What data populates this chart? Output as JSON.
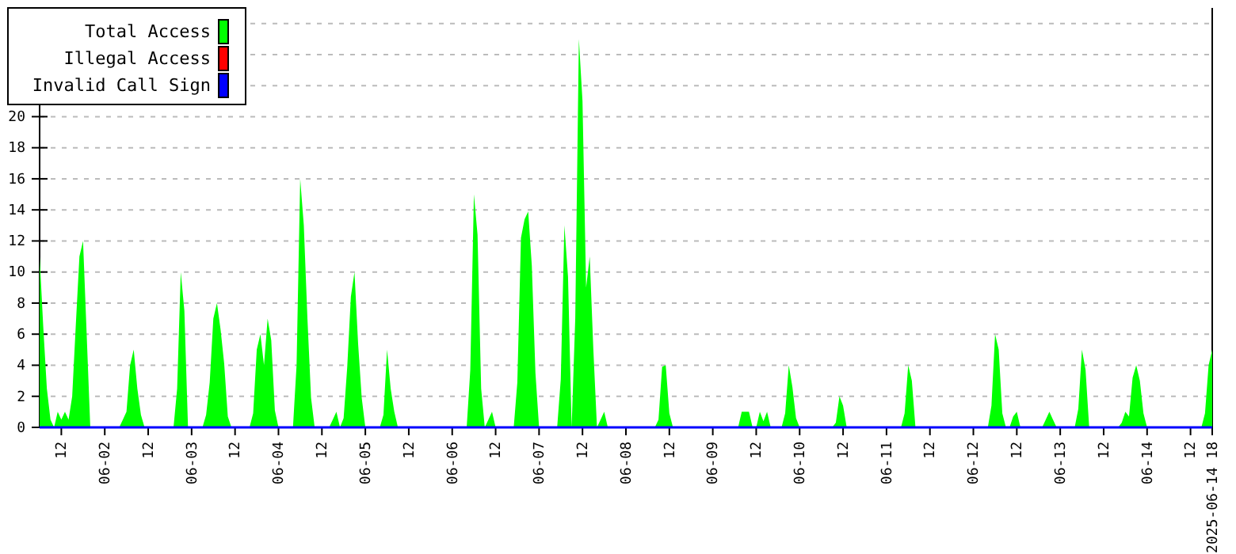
{
  "chart_data": {
    "type": "area",
    "xlim": [
      "2025-06-01T06:00",
      "2025-06-14T18:00"
    ],
    "xticks": [
      {
        "value": "2025-06-01T12:00",
        "label": "12"
      },
      {
        "value": "2025-06-02T00:00",
        "label": "06-02"
      },
      {
        "value": "2025-06-02T12:00",
        "label": "12"
      },
      {
        "value": "2025-06-03T00:00",
        "label": "06-03"
      },
      {
        "value": "2025-06-03T12:00",
        "label": "12"
      },
      {
        "value": "2025-06-04T00:00",
        "label": "06-04"
      },
      {
        "value": "2025-06-04T12:00",
        "label": "12"
      },
      {
        "value": "2025-06-05T00:00",
        "label": "06-05"
      },
      {
        "value": "2025-06-05T12:00",
        "label": "12"
      },
      {
        "value": "2025-06-06T00:00",
        "label": "06-06"
      },
      {
        "value": "2025-06-06T12:00",
        "label": "12"
      },
      {
        "value": "2025-06-07T00:00",
        "label": "06-07"
      },
      {
        "value": "2025-06-07T12:00",
        "label": "12"
      },
      {
        "value": "2025-06-08T00:00",
        "label": "06-08"
      },
      {
        "value": "2025-06-08T12:00",
        "label": "12"
      },
      {
        "value": "2025-06-09T00:00",
        "label": "06-09"
      },
      {
        "value": "2025-06-09T12:00",
        "label": "12"
      },
      {
        "value": "2025-06-10T00:00",
        "label": "06-10"
      },
      {
        "value": "2025-06-10T12:00",
        "label": "12"
      },
      {
        "value": "2025-06-11T00:00",
        "label": "06-11"
      },
      {
        "value": "2025-06-11T12:00",
        "label": "12"
      },
      {
        "value": "2025-06-12T00:00",
        "label": "06-12"
      },
      {
        "value": "2025-06-12T12:00",
        "label": "12"
      },
      {
        "value": "2025-06-13T00:00",
        "label": "06-13"
      },
      {
        "value": "2025-06-13T12:00",
        "label": "12"
      },
      {
        "value": "2025-06-14T00:00",
        "label": "06-14"
      },
      {
        "value": "2025-06-14T12:00",
        "label": "12"
      },
      {
        "value": "2025-06-14T18:00",
        "label": "2025-06-14 18"
      }
    ],
    "ylim": [
      0,
      27
    ],
    "yticks": [
      0,
      2,
      4,
      6,
      8,
      10,
      12,
      14,
      16,
      18,
      20,
      {
        "value": 22,
        "label": null
      },
      {
        "value": 24,
        "label": null
      },
      {
        "value": 26,
        "label": null
      }
    ],
    "grid": "y",
    "legend": "top left",
    "series": [
      {
        "name": "Total Access",
        "color": "#00ff00",
        "x": [
          "2025-06-01T06:00",
          "2025-06-01T07:00",
          "2025-06-01T08:00",
          "2025-06-01T09:00",
          "2025-06-01T10:00",
          "2025-06-01T11:00",
          "2025-06-01T12:00",
          "2025-06-01T13:00",
          "2025-06-01T14:00",
          "2025-06-01T15:00",
          "2025-06-01T16:00",
          "2025-06-01T17:00",
          "2025-06-01T18:00",
          "2025-06-01T19:00",
          "2025-06-01T20:00",
          "2025-06-02T04:00",
          "2025-06-02T05:00",
          "2025-06-02T06:00",
          "2025-06-02T07:00",
          "2025-06-02T08:00",
          "2025-06-02T09:00",
          "2025-06-02T10:00",
          "2025-06-02T11:00",
          "2025-06-02T19:00",
          "2025-06-02T20:00",
          "2025-06-02T21:00",
          "2025-06-02T22:00",
          "2025-06-02T23:00",
          "2025-06-03T03:00",
          "2025-06-03T04:00",
          "2025-06-03T05:00",
          "2025-06-03T06:00",
          "2025-06-03T07:00",
          "2025-06-03T08:00",
          "2025-06-03T09:00",
          "2025-06-03T10:00",
          "2025-06-03T11:00",
          "2025-06-03T16:00",
          "2025-06-03T17:00",
          "2025-06-03T18:00",
          "2025-06-03T19:00",
          "2025-06-03T20:00",
          "2025-06-03T21:00",
          "2025-06-03T22:00",
          "2025-06-03T23:00",
          "2025-06-04T00:00",
          "2025-06-04T04:00",
          "2025-06-04T05:00",
          "2025-06-04T06:00",
          "2025-06-04T07:00",
          "2025-06-04T08:00",
          "2025-06-04T09:00",
          "2025-06-04T10:00",
          "2025-06-04T14:00",
          "2025-06-04T15:00",
          "2025-06-04T16:00",
          "2025-06-04T17:00",
          "2025-06-04T18:00",
          "2025-06-04T19:00",
          "2025-06-04T20:00",
          "2025-06-04T21:00",
          "2025-06-04T22:00",
          "2025-06-04T23:00",
          "2025-06-05T00:00",
          "2025-06-05T04:00",
          "2025-06-05T05:00",
          "2025-06-05T06:00",
          "2025-06-05T07:00",
          "2025-06-05T08:00",
          "2025-06-05T09:00",
          "2025-06-06T04:00",
          "2025-06-06T05:00",
          "2025-06-06T06:00",
          "2025-06-06T07:00",
          "2025-06-06T08:00",
          "2025-06-06T09:00",
          "2025-06-06T10:00",
          "2025-06-06T11:00",
          "2025-06-06T12:00",
          "2025-06-06T17:00",
          "2025-06-06T18:00",
          "2025-06-06T19:00",
          "2025-06-06T20:00",
          "2025-06-06T21:00",
          "2025-06-06T22:00",
          "2025-06-06T23:00",
          "2025-06-07T00:00",
          "2025-06-07T05:00",
          "2025-06-07T06:00",
          "2025-06-07T07:00",
          "2025-06-07T08:00",
          "2025-06-07T09:00",
          "2025-06-07T10:00",
          "2025-06-07T11:00",
          "2025-06-07T12:00",
          "2025-06-07T13:00",
          "2025-06-07T14:00",
          "2025-06-07T15:00",
          "2025-06-07T16:00",
          "2025-06-07T17:00",
          "2025-06-07T18:00",
          "2025-06-07T19:00",
          "2025-06-08T08:00",
          "2025-06-08T09:00",
          "2025-06-08T10:00",
          "2025-06-08T11:00",
          "2025-06-08T12:00",
          "2025-06-08T13:00",
          "2025-06-09T07:00",
          "2025-06-09T08:00",
          "2025-06-09T09:00",
          "2025-06-09T10:00",
          "2025-06-09T11:00",
          "2025-06-09T12:00",
          "2025-06-09T13:00",
          "2025-06-09T14:00",
          "2025-06-09T15:00",
          "2025-06-09T16:00",
          "2025-06-09T19:00",
          "2025-06-09T20:00",
          "2025-06-09T21:00",
          "2025-06-09T22:00",
          "2025-06-09T23:00",
          "2025-06-10T00:00",
          "2025-06-10T09:00",
          "2025-06-10T10:00",
          "2025-06-10T11:00",
          "2025-06-10T12:00",
          "2025-06-10T13:00",
          "2025-06-11T04:00",
          "2025-06-11T05:00",
          "2025-06-11T06:00",
          "2025-06-11T07:00",
          "2025-06-11T08:00",
          "2025-06-12T04:00",
          "2025-06-12T05:00",
          "2025-06-12T06:00",
          "2025-06-12T07:00",
          "2025-06-12T08:00",
          "2025-06-12T09:00",
          "2025-06-12T10:00",
          "2025-06-12T11:00",
          "2025-06-12T12:00",
          "2025-06-12T13:00",
          "2025-06-12T19:00",
          "2025-06-12T20:00",
          "2025-06-12T21:00",
          "2025-06-12T22:00",
          "2025-06-12T23:00",
          "2025-06-13T04:00",
          "2025-06-13T05:00",
          "2025-06-13T06:00",
          "2025-06-13T07:00",
          "2025-06-13T08:00",
          "2025-06-13T16:00",
          "2025-06-13T17:00",
          "2025-06-13T18:00",
          "2025-06-13T19:00",
          "2025-06-13T20:00",
          "2025-06-13T21:00",
          "2025-06-13T22:00",
          "2025-06-13T23:00",
          "2025-06-14T00:00",
          "2025-06-14T15:00",
          "2025-06-14T16:00",
          "2025-06-14T17:00",
          "2025-06-14T18:00"
        ],
        "values": [
          11,
          6.5,
          2.5,
          0.5,
          0,
          1,
          0.5,
          1,
          0.5,
          2,
          6.6,
          11,
          12,
          6,
          0,
          0,
          0.5,
          1,
          4,
          5,
          2.5,
          0.8,
          0,
          0,
          2.5,
          10,
          7.5,
          0,
          0,
          0.8,
          2.9,
          7,
          8,
          6.3,
          4.1,
          0.7,
          0,
          0,
          0.9,
          5,
          6,
          4,
          7,
          5.6,
          1.1,
          0,
          0,
          4,
          16,
          13,
          7,
          1.9,
          0,
          0,
          0.5,
          1,
          0,
          0.6,
          3.9,
          8.4,
          10,
          5.4,
          1.9,
          0,
          0,
          0.8,
          5,
          2.5,
          1,
          0,
          0,
          3.7,
          15,
          12.4,
          2.5,
          0,
          0.5,
          1,
          0,
          0,
          2.9,
          12.2,
          13.4,
          13.9,
          10.4,
          3.5,
          0,
          0,
          3.1,
          13,
          9.7,
          0,
          7,
          25,
          21,
          9,
          11,
          5,
          0,
          0.5,
          1,
          0,
          0,
          0.5,
          3.9,
          4,
          0.9,
          0,
          0,
          1,
          1,
          1,
          0,
          0,
          1,
          0.4,
          1,
          0,
          0,
          0.9,
          4,
          2.6,
          0.6,
          0,
          0,
          0.3,
          2,
          1.4,
          0,
          0,
          0.9,
          4,
          3,
          0,
          0,
          1.4,
          6,
          5,
          0.9,
          0,
          0,
          0.7,
          1,
          0,
          0,
          0.5,
          1,
          0.5,
          0,
          0,
          1.2,
          5,
          3.7,
          0,
          0,
          0.3,
          1,
          0.7,
          3.2,
          4,
          3,
          0.9,
          0,
          0,
          0.9,
          4,
          5
        ]
      },
      {
        "name": "Illegal Access",
        "type": "line",
        "color": "#ff0000"
      },
      {
        "name": "Invalid Call Sign",
        "type": "line",
        "color": "#0000ff",
        "x": [
          "2025-06-01T06:00",
          "2025-06-14T18:00"
        ],
        "values": [
          0,
          0
        ]
      }
    ]
  }
}
